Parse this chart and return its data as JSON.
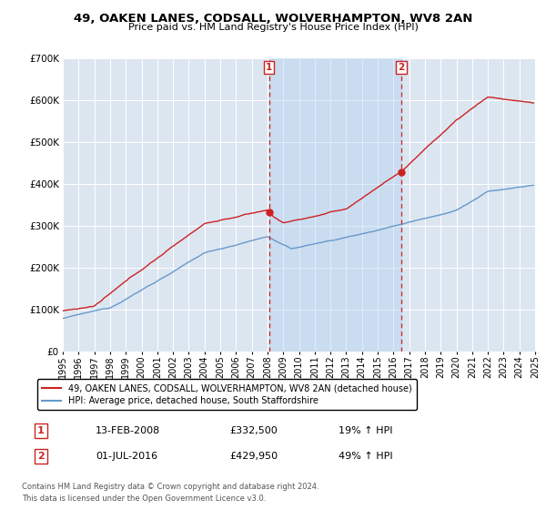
{
  "title": "49, OAKEN LANES, CODSALL, WOLVERHAMPTON, WV8 2AN",
  "subtitle": "Price paid vs. HM Land Registry's House Price Index (HPI)",
  "ylim": [
    0,
    700000
  ],
  "yticks": [
    0,
    100000,
    200000,
    300000,
    400000,
    500000,
    600000,
    700000
  ],
  "ytick_labels": [
    "£0",
    "£100K",
    "£200K",
    "£300K",
    "£400K",
    "£500K",
    "£600K",
    "£700K"
  ],
  "background_color": "#dce6f1",
  "grid_color": "#ffffff",
  "hpi_color": "#6699cc",
  "price_color": "#cc2222",
  "shade_color": "#c5d8ee",
  "marker1_date": 2008.1,
  "marker1_price": 332500,
  "marker1_label": "13-FEB-2008",
  "marker1_amount": "£332,500",
  "marker1_pct": "19% ↑ HPI",
  "marker2_date": 2016.5,
  "marker2_price": 429950,
  "marker2_label": "01-JUL-2016",
  "marker2_amount": "£429,950",
  "marker2_pct": "49% ↑ HPI",
  "legend_line1": "49, OAKEN LANES, CODSALL, WOLVERHAMPTON, WV8 2AN (detached house)",
  "legend_line2": "HPI: Average price, detached house, South Staffordshire",
  "footer1": "Contains HM Land Registry data © Crown copyright and database right 2024.",
  "footer2": "This data is licensed under the Open Government Licence v3.0.",
  "xmin": 1995,
  "xmax": 2025
}
